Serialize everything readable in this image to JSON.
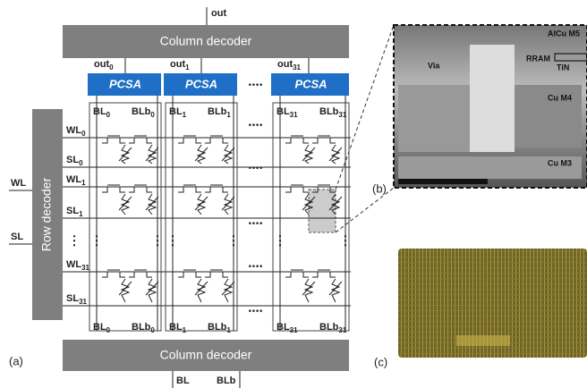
{
  "out": "out",
  "column_decoder_top": "Column decoder",
  "columns": [
    {
      "out": {
        "main": "out",
        "sub": "0"
      },
      "pcsa": "PCSA",
      "bl": {
        "main": "BL",
        "sub": "0"
      },
      "blb": {
        "main": "BLb",
        "sub": "0"
      }
    },
    {
      "out": {
        "main": "out",
        "sub": "1"
      },
      "pcsa": "PCSA",
      "bl": {
        "main": "BL",
        "sub": "1"
      },
      "blb": {
        "main": "BLb",
        "sub": "1"
      }
    },
    {
      "out": {
        "main": "out",
        "sub": "31"
      },
      "pcsa": "PCSA",
      "bl": {
        "main": "BL",
        "sub": "31"
      },
      "blb": {
        "main": "BLb",
        "sub": "31"
      }
    }
  ],
  "rows": [
    {
      "wl": {
        "main": "WL",
        "sub": "0"
      },
      "sl": {
        "main": "SL",
        "sub": "0"
      }
    },
    {
      "wl": {
        "main": "WL",
        "sub": "1"
      },
      "sl": {
        "main": "SL",
        "sub": "1"
      }
    },
    {
      "wl": {
        "main": "WL",
        "sub": "31"
      },
      "sl": {
        "main": "SL",
        "sub": "31"
      }
    }
  ],
  "row_decoder": "Row decoder",
  "wl": "WL",
  "sl": "SL",
  "label_a": "(a)",
  "column_decoder_bottom": "Column decoder",
  "bl": "BL",
  "blb": "BLb",
  "label_b": "(b)",
  "label_c": "(c)",
  "sem_labels": [
    "AlCu M5",
    "Via",
    "RRAM",
    "TiN",
    "Cu M4",
    "Cu M3"
  ]
}
